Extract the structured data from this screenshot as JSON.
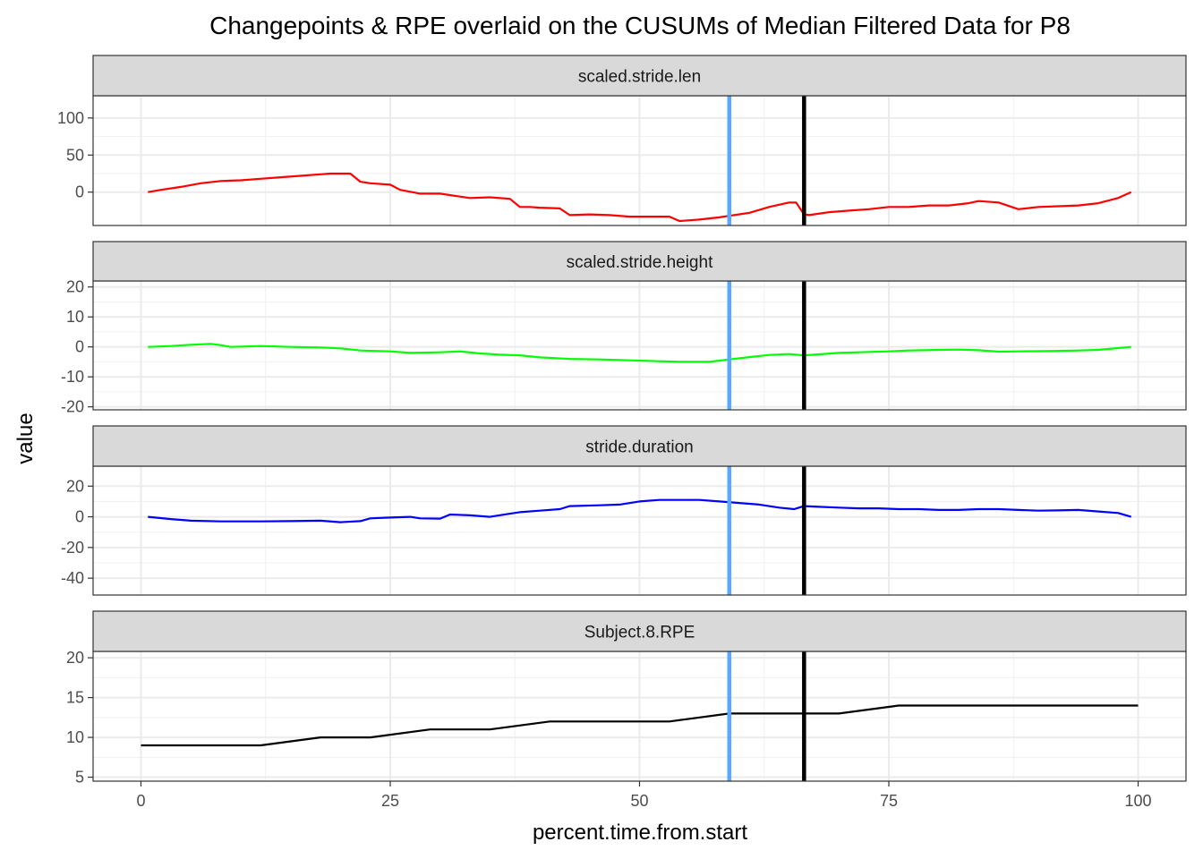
{
  "chart_data": {
    "type": "line",
    "title": "Changepoints & RPE overlaid on the CUSUMs of Median Filtered Data for P8",
    "xlabel": "percent.time.from.start",
    "ylabel": "value",
    "xlim": [
      -4.8,
      104.8
    ],
    "x_ticks": [
      0,
      25,
      50,
      75,
      100
    ],
    "x_tick_labels": [
      "0",
      "25",
      "50",
      "75",
      "100"
    ],
    "grid": true,
    "vlines": [
      {
        "x": 59.0,
        "color": "#5aa9ff"
      },
      {
        "x": 66.5,
        "color": "#000000"
      }
    ],
    "panels": [
      {
        "name": "scaled.stride.len",
        "color": "#ff0000",
        "ylim": [
          -45,
          130
        ],
        "y_ticks": [
          0,
          50,
          100
        ],
        "y_tick_labels": [
          "0",
          "50",
          "100"
        ],
        "x": [
          0.7,
          2,
          4,
          6,
          8,
          10,
          12,
          14,
          16,
          18,
          19,
          21,
          22,
          23,
          25,
          26,
          28,
          30,
          32,
          33,
          35,
          37,
          38,
          39,
          40,
          42,
          43,
          45,
          47,
          49,
          51,
          53,
          54,
          56,
          58,
          59,
          61,
          63,
          65,
          65.7,
          66.5,
          67,
          69,
          71,
          73,
          75,
          77,
          79,
          81,
          83,
          84,
          86,
          88,
          90,
          92,
          94,
          96,
          98,
          99.3
        ],
        "y": [
          0,
          3,
          7,
          12,
          15,
          16,
          18,
          20,
          22,
          24,
          25,
          25,
          14,
          12,
          10,
          3,
          -2,
          -2,
          -6,
          -8,
          -7,
          -9,
          -20,
          -20,
          -21,
          -22,
          -31,
          -30,
          -31,
          -33,
          -33,
          -33,
          -39,
          -37,
          -34,
          -32,
          -28,
          -20,
          -14,
          -14,
          -30,
          -31,
          -27,
          -25,
          -23,
          -20,
          -20,
          -18,
          -18,
          -15,
          -12,
          -14,
          -23,
          -20,
          -19,
          -18,
          -15,
          -8,
          0
        ]
      },
      {
        "name": "scaled.stride.height",
        "color": "#00ff00",
        "ylim": [
          -21,
          22
        ],
        "y_ticks": [
          -20,
          -10,
          0,
          10,
          20
        ],
        "y_tick_labels": [
          "-20",
          "-10",
          "0",
          "10",
          "20"
        ],
        "x": [
          0.7,
          3,
          5,
          7,
          8,
          9,
          12,
          15,
          18,
          20,
          22,
          25,
          27,
          30,
          32,
          34,
          36,
          38,
          40,
          43,
          46,
          49,
          52,
          54,
          57,
          59,
          61,
          63,
          65,
          66.5,
          68,
          70,
          72,
          75,
          77,
          80,
          82,
          84,
          86,
          88,
          91,
          94,
          96,
          99.3
        ],
        "y": [
          0,
          0.3,
          0.7,
          1.0,
          0.6,
          0,
          0.3,
          0,
          -0.2,
          -0.5,
          -1.2,
          -1.5,
          -2,
          -1.8,
          -1.5,
          -2.2,
          -2.6,
          -2.8,
          -3.5,
          -4.0,
          -4.2,
          -4.5,
          -4.8,
          -5.0,
          -5.0,
          -4.2,
          -3.4,
          -2.7,
          -2.4,
          -2.8,
          -2.5,
          -2.0,
          -1.8,
          -1.5,
          -1.2,
          -1.0,
          -0.9,
          -1.1,
          -1.6,
          -1.5,
          -1.4,
          -1.2,
          -1.0,
          0
        ]
      },
      {
        "name": "stride.duration",
        "color": "#0000ff",
        "ylim": [
          -51,
          33
        ],
        "y_ticks": [
          -40,
          -20,
          0,
          20
        ],
        "y_tick_labels": [
          "-40",
          "-20",
          "0",
          "20"
        ],
        "x": [
          0.7,
          3,
          5,
          8,
          12,
          15,
          18,
          20,
          22,
          23,
          25,
          27,
          28,
          30,
          31,
          33,
          35,
          37,
          38,
          40,
          42,
          43,
          46,
          48,
          50,
          52,
          54,
          56,
          58,
          60,
          62,
          64,
          65.5,
          66.5,
          68,
          70,
          72,
          74,
          76,
          78,
          80,
          82,
          84,
          86,
          88,
          90,
          92,
          94,
          96,
          98,
          99.3
        ],
        "y": [
          0,
          -1.5,
          -2.5,
          -3,
          -3,
          -2.8,
          -2.5,
          -3.5,
          -2.8,
          -1,
          -0.5,
          0,
          -1,
          -1.2,
          1.5,
          1,
          0,
          2,
          3,
          4,
          5,
          7,
          7.5,
          8,
          10,
          11,
          11,
          11,
          10,
          9,
          8,
          6,
          5,
          7,
          6.5,
          6,
          5.5,
          5.5,
          5,
          5,
          4.5,
          4.5,
          5,
          5,
          4.5,
          4,
          4.2,
          4.5,
          3.5,
          2.5,
          0
        ]
      },
      {
        "name": "Subject.8.RPE",
        "color": "#000000",
        "ylim": [
          4.5,
          20.8
        ],
        "y_ticks": [
          5,
          10,
          15,
          20
        ],
        "y_tick_labels": [
          "5",
          "10",
          "15",
          "20"
        ],
        "x": [
          0,
          12,
          18,
          23,
          29,
          35,
          41,
          47,
          53,
          59,
          65,
          70,
          76,
          100
        ],
        "y": [
          9,
          9,
          10,
          10,
          11,
          11,
          12,
          12,
          12,
          13,
          13,
          13,
          14,
          14
        ]
      }
    ]
  }
}
